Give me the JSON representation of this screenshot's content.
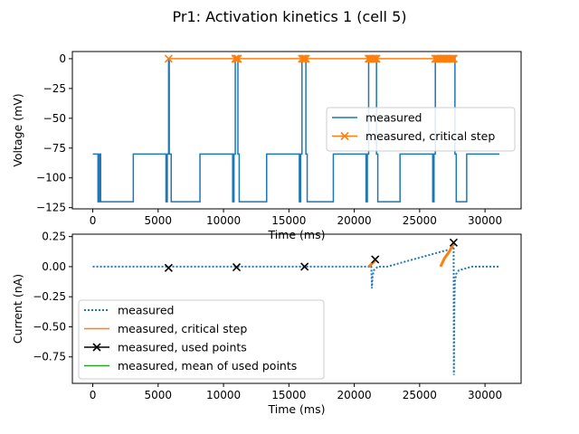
{
  "title": "Pr1: Activation kinetics 1 (cell 5)",
  "colors": {
    "measured": "#1f77b4",
    "critical": "#ff7f0e",
    "used": "#000000",
    "mean": "#2ca02c"
  },
  "chart_data": [
    {
      "type": "line",
      "xlabel": "Time (ms)",
      "ylabel": "Voltage (mV)",
      "xlim": [
        -1560,
        32760
      ],
      "ylim": [
        -126,
        6
      ],
      "xticks": [
        0,
        5000,
        10000,
        15000,
        20000,
        25000,
        30000
      ],
      "yticks": [
        0,
        -25,
        -50,
        -75,
        -100,
        -125
      ],
      "legend": {
        "position": "center-right",
        "entries": [
          "measured",
          "measured, critical step"
        ]
      },
      "series": [
        {
          "name": "measured",
          "style": "solid",
          "x": [
            0,
            400,
            400,
            500,
            500,
            600,
            600,
            3100,
            3100,
            5600,
            5600,
            5700,
            5700,
            5800,
            5800,
            5850,
            5850,
            6000,
            6000,
            8200,
            8200,
            10700,
            10700,
            10800,
            10800,
            10900,
            10900,
            11100,
            11100,
            11200,
            11200,
            13300,
            13300,
            15800,
            15800,
            15900,
            15900,
            16000,
            16000,
            16300,
            16300,
            16400,
            16400,
            18400,
            18400,
            20900,
            20900,
            21000,
            21000,
            21100,
            21100,
            21700,
            21700,
            21800,
            21800,
            23500,
            23500,
            26000,
            26000,
            26100,
            26100,
            26200,
            26200,
            27700,
            27700,
            27800,
            27800,
            28600,
            28600,
            31100
          ],
          "y": [
            -80,
            -80,
            -120,
            -120,
            -80,
            -80,
            -120,
            -120,
            -80,
            -80,
            -120,
            -120,
            -80,
            -80,
            0,
            0,
            -80,
            -80,
            -120,
            -120,
            -80,
            -80,
            -120,
            -120,
            -80,
            -80,
            0,
            0,
            -80,
            -80,
            -120,
            -120,
            -80,
            -80,
            -120,
            -120,
            -80,
            -80,
            0,
            0,
            -80,
            -80,
            -120,
            -120,
            -80,
            -80,
            -120,
            -120,
            -80,
            -80,
            0,
            0,
            -80,
            -80,
            -120,
            -120,
            -80,
            -80,
            -120,
            -120,
            -80,
            -80,
            0,
            0,
            -80,
            -80,
            -120,
            -120,
            -80,
            -80
          ]
        },
        {
          "name": "measured, critical step",
          "marker": "x",
          "x": [
            5800,
            10900,
            11000,
            11100,
            16000,
            16100,
            16200,
            16300,
            21100,
            21200,
            21300,
            21400,
            21500,
            21600,
            21700,
            26200,
            26300,
            26400,
            26500,
            26600,
            26700,
            26800,
            26900,
            27000,
            27100,
            27200,
            27300,
            27400,
            27500,
            27600
          ],
          "y": [
            0,
            0,
            0,
            0,
            0,
            0,
            0,
            0,
            0,
            0,
            0,
            0,
            0,
            0,
            0,
            0,
            0,
            0,
            0,
            0,
            0,
            0,
            0,
            0,
            0,
            0,
            0,
            0,
            0,
            0
          ]
        }
      ]
    },
    {
      "type": "line",
      "xlabel": "Time (ms)",
      "ylabel": "Current (nA)",
      "xlim": [
        -1560,
        32760
      ],
      "ylim": [
        -0.97,
        0.27
      ],
      "xticks": [
        0,
        5000,
        10000,
        15000,
        20000,
        25000,
        30000
      ],
      "yticks": [
        0.25,
        0.0,
        -0.25,
        -0.5,
        -0.75
      ],
      "ytick_labels": [
        "0.25",
        "0.00",
        "−0.25",
        "−0.50",
        "−0.75"
      ],
      "legend": {
        "position": "lower-left",
        "entries": [
          "measured",
          "measured, critical step",
          "measured, used points",
          "measured, mean of used points"
        ]
      },
      "series": [
        {
          "name": "measured",
          "style": "dotted",
          "x": [
            0,
            21250,
            21300,
            21350,
            21400,
            21500,
            21700,
            21800,
            22500,
            27500,
            27600,
            27620,
            27640,
            27660,
            27700,
            27800,
            28000,
            28500,
            29000,
            31100
          ],
          "y": [
            0,
            0,
            0.02,
            -0.18,
            -0.08,
            -0.03,
            -0.01,
            0,
            0,
            0.15,
            0.2,
            -0.9,
            -0.55,
            -0.3,
            -0.12,
            -0.06,
            -0.03,
            -0.015,
            0,
            0
          ]
        },
        {
          "name": "measured, critical step",
          "style": "solid",
          "x": [
            21100,
            21600,
            26600,
            26900,
            27300,
            27600
          ],
          "y": [
            0.0,
            0.05,
            0.0,
            0.07,
            0.13,
            0.2
          ]
        },
        {
          "name": "measured, used points",
          "marker": "x",
          "x": [
            5800,
            11000,
            16200,
            21600,
            27600
          ],
          "y": [
            -0.01,
            -0.005,
            0.0,
            0.06,
            0.2
          ]
        },
        {
          "name": "measured, mean of used points",
          "style": "solid",
          "x": [],
          "y": []
        }
      ]
    }
  ]
}
